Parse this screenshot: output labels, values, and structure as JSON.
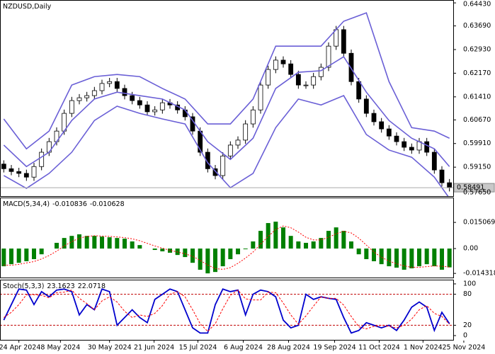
{
  "chart_data": [
    {
      "type": "candlestick",
      "title": "NZDUSD,Daily",
      "open": [
        0.5925,
        0.591,
        0.5901,
        0.5895,
        0.5883,
        0.5917,
        0.5963,
        0.5997,
        0.6031,
        0.6088,
        0.6129,
        0.6138,
        0.6145,
        0.6161,
        0.6184,
        0.619,
        0.6168,
        0.6145,
        0.6129,
        0.6115,
        0.6093,
        0.6099,
        0.6122,
        0.6115,
        0.6099,
        0.6077,
        0.6031,
        0.5963,
        0.591,
        0.5888,
        0.5951,
        0.5986,
        0.6002,
        0.6054,
        0.6099,
        0.6179,
        0.6229,
        0.6259,
        0.6247,
        0.6213,
        0.6179,
        0.6179,
        0.6206,
        0.6236,
        0.6304,
        0.6357,
        0.6281,
        0.619,
        0.6134,
        0.6088,
        0.6061,
        0.6038,
        0.6015,
        0.5997,
        0.5979,
        0.597,
        0.5997,
        0.5963,
        0.5906,
        0.5865
      ],
      "high": [
        0.5937,
        0.5922,
        0.5913,
        0.5907,
        0.5929,
        0.5975,
        0.6009,
        0.6043,
        0.61,
        0.6141,
        0.615,
        0.6157,
        0.6173,
        0.6196,
        0.6202,
        0.6202,
        0.618,
        0.6157,
        0.6141,
        0.6127,
        0.6111,
        0.6134,
        0.6134,
        0.6127,
        0.6111,
        0.6089,
        0.6043,
        0.5975,
        0.5922,
        0.5963,
        0.5998,
        0.6014,
        0.6066,
        0.6111,
        0.6191,
        0.6241,
        0.6271,
        0.6271,
        0.6259,
        0.6225,
        0.6191,
        0.6218,
        0.6248,
        0.6316,
        0.6369,
        0.6369,
        0.6293,
        0.6202,
        0.6146,
        0.61,
        0.6073,
        0.605,
        0.6027,
        0.6009,
        0.5991,
        0.6009,
        0.6009,
        0.5975,
        0.5918,
        0.5877
      ],
      "low": [
        0.5898,
        0.5889,
        0.5883,
        0.5871,
        0.5871,
        0.5905,
        0.5951,
        0.5985,
        0.6019,
        0.6076,
        0.6117,
        0.6126,
        0.6133,
        0.6149,
        0.6172,
        0.6156,
        0.6133,
        0.6117,
        0.6103,
        0.6081,
        0.6081,
        0.6087,
        0.6103,
        0.6087,
        0.6065,
        0.6019,
        0.5951,
        0.5898,
        0.5876,
        0.5876,
        0.5939,
        0.5974,
        0.599,
        0.6042,
        0.6087,
        0.6167,
        0.6217,
        0.6235,
        0.6201,
        0.6167,
        0.6167,
        0.6167,
        0.6194,
        0.6224,
        0.6292,
        0.6269,
        0.6178,
        0.6122,
        0.6076,
        0.6049,
        0.6026,
        0.6003,
        0.5985,
        0.5967,
        0.5958,
        0.5958,
        0.5951,
        0.5894,
        0.5853,
        0.5837
      ],
      "close": [
        0.591,
        0.5901,
        0.5895,
        0.5883,
        0.5917,
        0.5963,
        0.5997,
        0.6031,
        0.6088,
        0.6129,
        0.6138,
        0.6145,
        0.6161,
        0.6184,
        0.619,
        0.6168,
        0.6145,
        0.6129,
        0.6115,
        0.6093,
        0.6099,
        0.6122,
        0.6115,
        0.6099,
        0.6077,
        0.6031,
        0.5963,
        0.591,
        0.5888,
        0.5951,
        0.5986,
        0.6002,
        0.6054,
        0.6099,
        0.6179,
        0.6229,
        0.6259,
        0.6247,
        0.6213,
        0.6179,
        0.6179,
        0.6206,
        0.6236,
        0.6304,
        0.6357,
        0.6281,
        0.619,
        0.6134,
        0.6088,
        0.6061,
        0.6038,
        0.6015,
        0.5997,
        0.5979,
        0.597,
        0.5997,
        0.5963,
        0.5906,
        0.5865,
        0.5849
      ],
      "series": [
        {
          "color": "#6a5fd6",
          "x": [
            0,
            3,
            6,
            9,
            12,
            15,
            18,
            21,
            24,
            27,
            30,
            33,
            36,
            39,
            42,
            45,
            48,
            51,
            54,
            57,
            59
          ],
          "values": [
            0.607,
            0.5974,
            0.6031,
            0.6179,
            0.6206,
            0.6213,
            0.6206,
            0.6168,
            0.6134,
            0.6054,
            0.6054,
            0.6134,
            0.6304,
            0.6304,
            0.6304,
            0.6384,
            0.6411,
            0.619,
            0.6042,
            0.6031,
            0.6008
          ]
        },
        {
          "color": "#6a5fd6",
          "x": [
            0,
            3,
            6,
            9,
            12,
            15,
            18,
            21,
            24,
            27,
            30,
            33,
            36,
            39,
            42,
            45,
            48,
            51,
            54,
            57,
            59
          ],
          "values": [
            0.5986,
            0.5917,
            0.5963,
            0.6065,
            0.6134,
            0.6156,
            0.6145,
            0.6134,
            0.6099,
            0.5997,
            0.594,
            0.6008,
            0.6168,
            0.622,
            0.6225,
            0.627,
            0.6156,
            0.6065,
            0.6008,
            0.5974,
            0.5917
          ]
        },
        {
          "color": "#6a5fd6",
          "x": [
            0,
            3,
            6,
            9,
            12,
            15,
            18,
            21,
            24,
            27,
            30,
            33,
            36,
            39,
            42,
            45,
            48,
            51,
            54,
            57,
            59
          ],
          "values": [
            0.5888,
            0.5847,
            0.5895,
            0.5963,
            0.6065,
            0.6111,
            0.6088,
            0.607,
            0.6054,
            0.5929,
            0.5849,
            0.5895,
            0.6042,
            0.6134,
            0.6115,
            0.6145,
            0.602,
            0.597,
            0.5947,
            0.5883,
            0.5815
          ]
        }
      ],
      "current_price": 0.58491,
      "xlim": [
        -0.5,
        59.5
      ],
      "ylim": [
        0.5822,
        0.645
      ],
      "yticks": [
        {
          "value": 0.6443,
          "label": "0.64430"
        },
        {
          "value": 0.6369,
          "label": "0.63690"
        },
        {
          "value": 0.6293,
          "label": "0.62930"
        },
        {
          "value": 0.6217,
          "label": "0.62170"
        },
        {
          "value": 0.6141,
          "label": "0.61410"
        },
        {
          "value": 0.6067,
          "label": "0.60670"
        },
        {
          "value": 0.5991,
          "label": "0.59910"
        },
        {
          "value": 0.5915,
          "label": "0.59150"
        },
        {
          "value": 0.5765,
          "label": "0.57650"
        }
      ]
    },
    {
      "type": "macd",
      "title": "MACD(5,34,4)",
      "series": [
        {
          "type": "bar",
          "color": "#008000",
          "values": [
            -0.0102,
            -0.009,
            -0.0082,
            -0.0073,
            -0.0061,
            -0.0033,
            0,
            0.0033,
            0.0061,
            0.0073,
            0.0082,
            0.0073,
            0.0073,
            0.0069,
            0.0065,
            0.0061,
            0.0057,
            0.0041,
            0.002,
            0,
            -0.0008,
            -0.0016,
            -0.0024,
            -0.0037,
            -0.0049,
            -0.0082,
            -0.0122,
            -0.0143,
            -0.0135,
            -0.0102,
            -0.0061,
            -0.0033,
            -0.0004,
            0.0041,
            0.0102,
            0.0147,
            0.0155,
            0.0122,
            0.0073,
            0.0041,
            0.0033,
            0.0041,
            0.0061,
            0.0102,
            0.0122,
            0.0102,
            0.0041,
            -0.0033,
            -0.0061,
            -0.0073,
            -0.009,
            -0.0102,
            -0.011,
            -0.0122,
            -0.0114,
            -0.0102,
            -0.009,
            -0.0102,
            -0.0122,
            -0.010836
          ]
        },
        {
          "type": "line",
          "color": "#ff0000",
          "values": [
            -0.0095,
            -0.0096,
            -0.0091,
            -0.0083,
            -0.0075,
            -0.006,
            -0.004,
            -0.0015,
            0.0015,
            0.004,
            0.006,
            0.007,
            0.0074,
            0.0072,
            0.007,
            0.0067,
            0.0063,
            0.0056,
            0.0045,
            0.003,
            0.0015,
            0.0002,
            -0.001,
            -0.002,
            -0.003,
            -0.0045,
            -0.0068,
            -0.0095,
            -0.0115,
            -0.012,
            -0.011,
            -0.0085,
            -0.0055,
            -0.002,
            0.0025,
            0.007,
            0.011,
            0.013,
            0.012,
            0.0095,
            0.0065,
            0.005,
            0.005,
            0.0065,
            0.0085,
            0.01,
            0.009,
            0.006,
            0.002,
            -0.002,
            -0.005,
            -0.0072,
            -0.0088,
            -0.01,
            -0.0108,
            -0.0108,
            -0.0104,
            -0.01,
            -0.0102,
            -0.010628
          ]
        }
      ],
      "xlim": [
        -0.5,
        59.5
      ],
      "ylim": [
        -0.0167,
        0.029
      ],
      "yticks": [
        0.015069,
        {
          "value": 0,
          "label": "0.00"
        },
        -0.014318
      ]
    },
    {
      "type": "stochastic",
      "title": "Stoch(5,3,3)",
      "series": [
        {
          "type": "line",
          "color": "#0000cd",
          "values": [
            30,
            60,
            90,
            88,
            60,
            85,
            75,
            88,
            90,
            85,
            40,
            60,
            50,
            90,
            85,
            20,
            35,
            50,
            35,
            25,
            70,
            80,
            90,
            85,
            50,
            15,
            5,
            5,
            60,
            90,
            85,
            88,
            40,
            80,
            88,
            85,
            75,
            30,
            15,
            20,
            80,
            70,
            75,
            72,
            70,
            35,
            5,
            10,
            25,
            20,
            15,
            20,
            10,
            30,
            55,
            65,
            55,
            10,
            45,
            23.1623
          ]
        },
        {
          "type": "line",
          "color": "#ff0000",
          "values": [
            35,
            45,
            60,
            79,
            79,
            78,
            73,
            83,
            84,
            88,
            72,
            62,
            50,
            67,
            75,
            65,
            47,
            35,
            40,
            37,
            43,
            58,
            80,
            85,
            75,
            50,
            23,
            8,
            23,
            52,
            78,
            88,
            71,
            69,
            69,
            84,
            83,
            63,
            40,
            22,
            38,
            57,
            75,
            72,
            72,
            59,
            37,
            17,
            13,
            18,
            20,
            18,
            15,
            20,
            32,
            50,
            58,
            43,
            37,
            22.0718
          ]
        }
      ],
      "levels": [
        80,
        20
      ],
      "xlim": [
        -0.5,
        59.5
      ],
      "ylim": [
        -8.2,
        106.8
      ],
      "yticks": [
        100,
        80,
        20,
        0
      ],
      "xticks": [
        {
          "value": 2,
          "label": "24 Apr 2024"
        },
        {
          "value": 7.5,
          "label": "8 May 2024"
        },
        {
          "value": 14,
          "label": "30 May 2024"
        },
        {
          "value": 19.9,
          "label": "21 Jun 2024"
        },
        {
          "value": 25.7,
          "label": "15 Jul 2024"
        },
        {
          "value": 31.7,
          "label": "6 Aug 2024"
        },
        {
          "value": 37.7,
          "label": "28 Aug 2024"
        },
        {
          "value": 43.8,
          "label": "19 Sep 2024"
        },
        {
          "value": 49.7,
          "label": "11 Oct 2024"
        },
        {
          "value": 55.5,
          "label": "1 Nov 2024"
        },
        {
          "value": 60.9,
          "label": "25 Nov 2024"
        }
      ]
    }
  ]
}
